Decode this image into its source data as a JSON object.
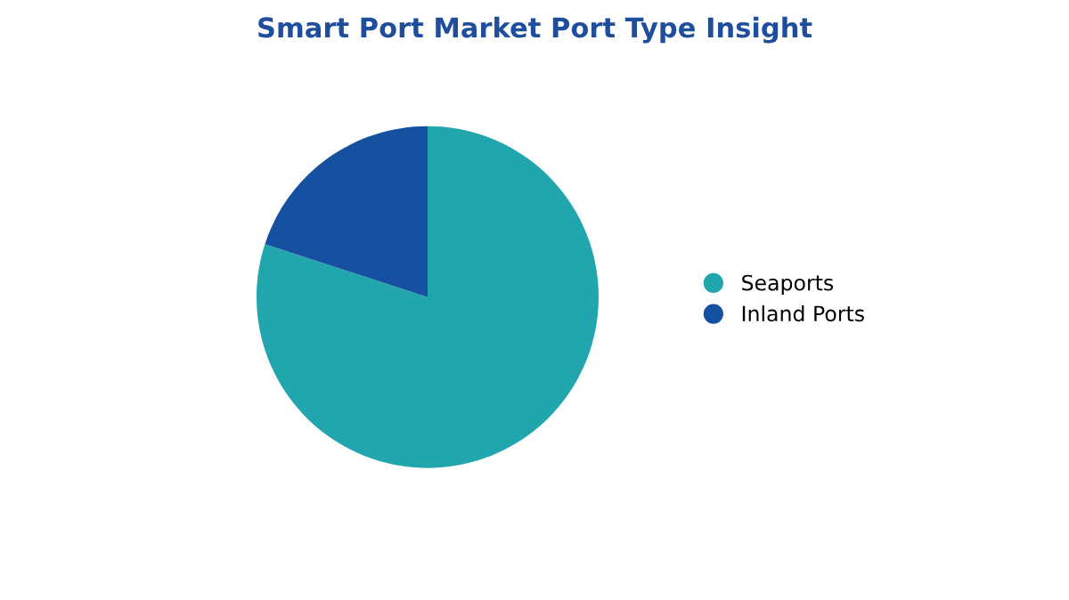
{
  "chart_data": {
    "type": "pie",
    "title": "Smart Port Market Port Type Insight",
    "categories": [
      "Seaports",
      "Inland Ports"
    ],
    "values": [
      80,
      20
    ],
    "colors": [
      "#21a6ae",
      "#1650a0"
    ],
    "legend": "right"
  }
}
